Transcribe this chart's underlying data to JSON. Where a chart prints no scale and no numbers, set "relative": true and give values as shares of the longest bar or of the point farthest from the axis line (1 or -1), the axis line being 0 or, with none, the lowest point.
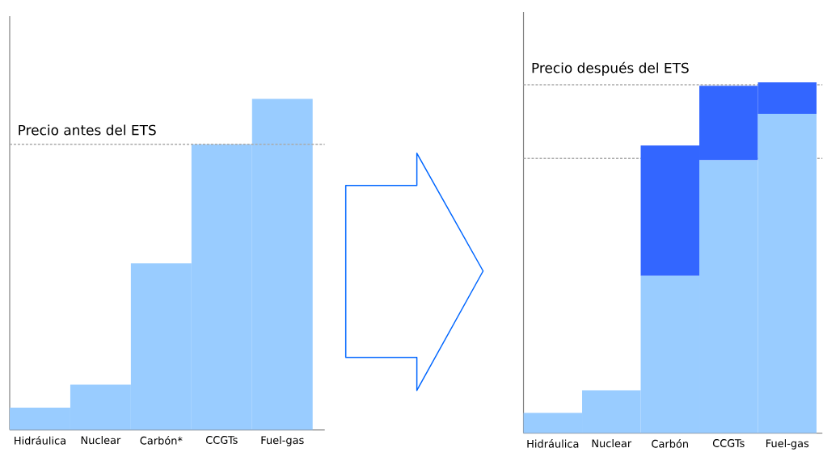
{
  "chart_data": [
    {
      "type": "bar",
      "relative": true,
      "categories": [
        "Hidráulica",
        "Nuclear",
        "Carbón*",
        "CCGTs",
        "Fuel-gas"
      ],
      "values": [
        0.067,
        0.137,
        0.503,
        0.863,
        1
      ],
      "color": "#99ccff",
      "ref_lines": [
        {
          "axis": "y",
          "value": 0.863,
          "label": "Precio antes del ETS",
          "color": "#aaaaaa",
          "line_style": "dotted"
        }
      ]
    },
    {
      "type": "bar",
      "relative": true,
      "stacked": true,
      "categories": [
        "Hidráulica",
        "Nuclear",
        "Carbón",
        "CCGTs",
        "Fuel-gas"
      ],
      "series": [
        {
          "color": "#99ccff",
          "values": [
            0.058,
            0.122,
            0.448,
            0.778,
            0.91
          ]
        },
        {
          "color": "#3366ff",
          "values": [
            null,
            null,
            0.372,
            0.212,
            0.09
          ]
        }
      ],
      "ref_lines": [
        {
          "axis": "y",
          "value": 0.783,
          "color": "#aaaaaa",
          "line_style": "dotted"
        },
        {
          "axis": "y",
          "value": 0.993,
          "label": "Precio después del ETS",
          "color": "#aaaaaa",
          "line_style": "dotted"
        }
      ]
    }
  ]
}
